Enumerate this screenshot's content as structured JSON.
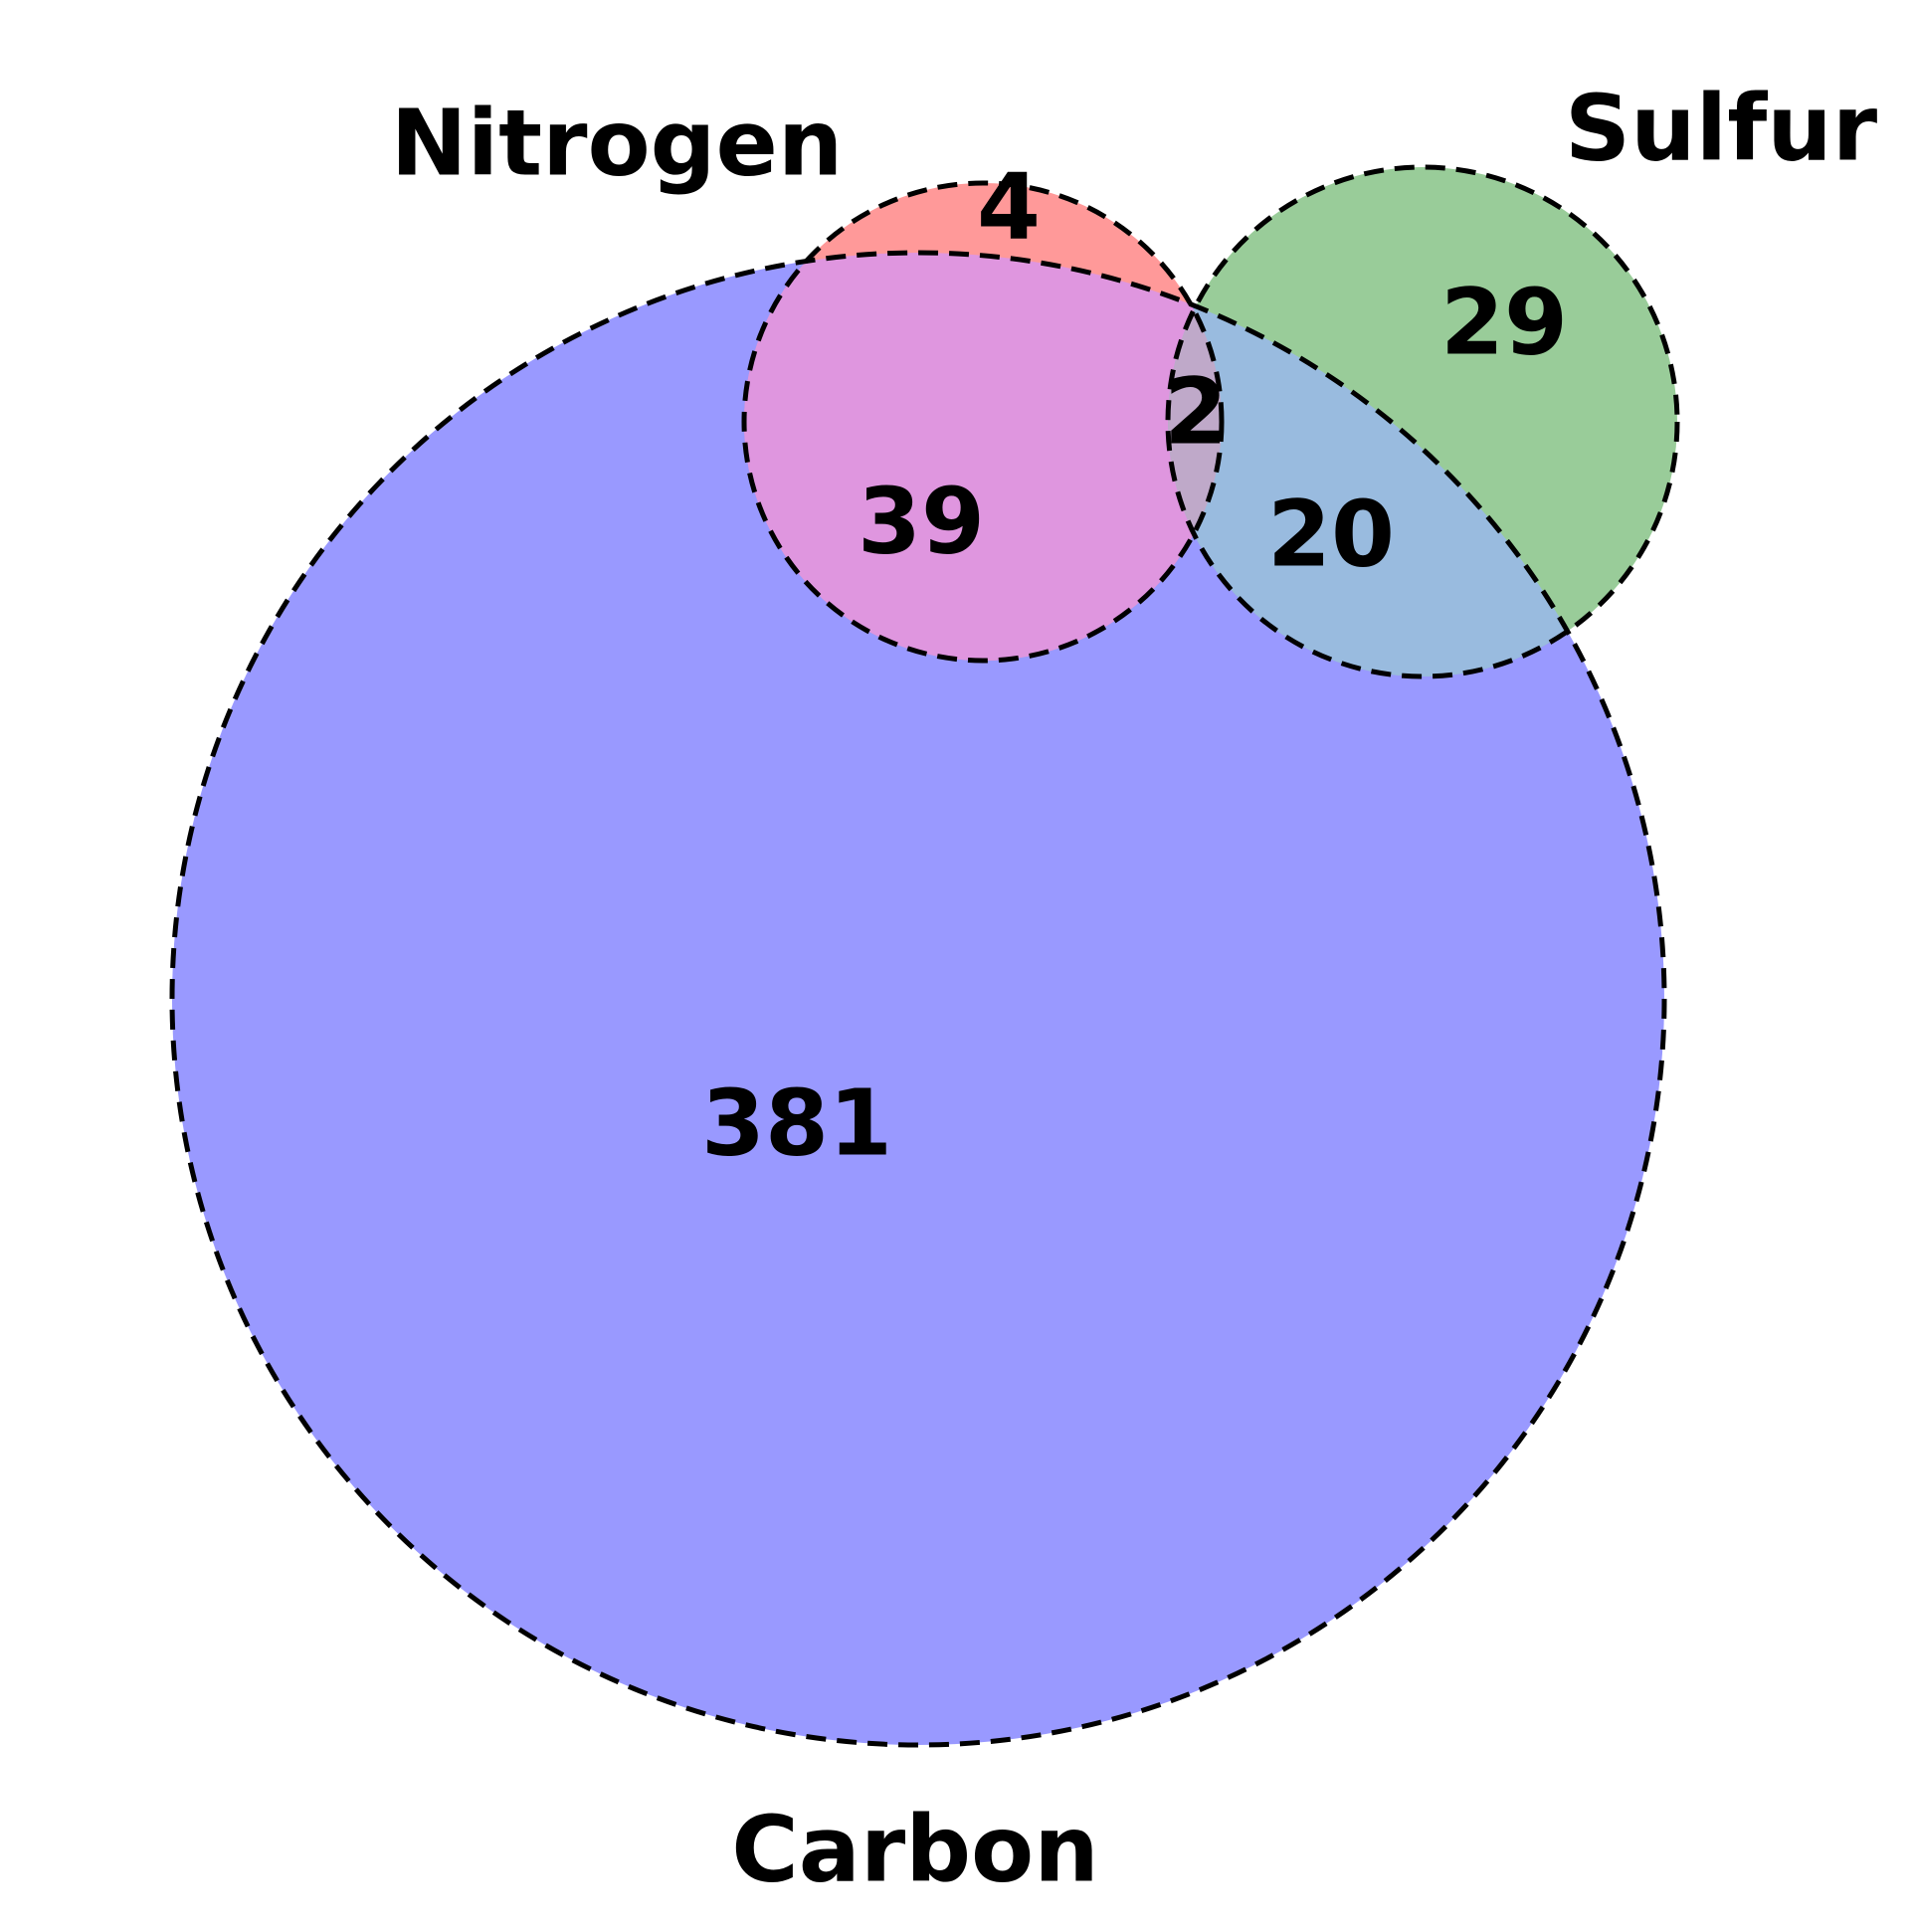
{
  "diagram": {
    "type": "venn",
    "sets": [
      {
        "id": "nitrogen",
        "name": "Nitrogen",
        "color": "#ff9999"
      },
      {
        "id": "sulfur",
        "name": "Sulfur",
        "color": "#99cc99"
      },
      {
        "id": "carbon",
        "name": "Carbon",
        "color": "#9999ff"
      }
    ],
    "regions": [
      {
        "id": "nitrogen-only",
        "sets": [
          "nitrogen"
        ],
        "count": "4"
      },
      {
        "id": "sulfur-only",
        "sets": [
          "sulfur"
        ],
        "count": "29"
      },
      {
        "id": "carbon-only",
        "sets": [
          "carbon"
        ],
        "count": "381"
      },
      {
        "id": "nitrogen-carbon",
        "sets": [
          "nitrogen",
          "carbon"
        ],
        "count": "39"
      },
      {
        "id": "sulfur-carbon",
        "sets": [
          "sulfur",
          "carbon"
        ],
        "count": "20"
      },
      {
        "id": "nitrogen-sulfur-carbon",
        "sets": [
          "nitrogen",
          "sulfur",
          "carbon"
        ],
        "count": "2"
      }
    ],
    "intersection_colors": {
      "nitrogen-carbon": "#df96df",
      "sulfur-carbon": "#99bbdf",
      "nitrogen-sulfur-carbon": "#bfa9c9"
    }
  }
}
